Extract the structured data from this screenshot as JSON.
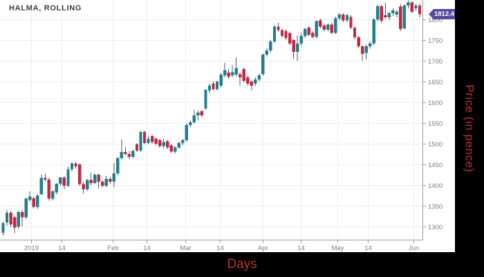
{
  "title": "HALMA, ROLLING",
  "last_price_badge": {
    "value": "1812.4",
    "color": "#584b9e",
    "text_color": "#ffffff"
  },
  "axes": {
    "y_title": "Price (in pence)",
    "x_title": "Days",
    "axis_title_color": "#bb3526"
  },
  "colors": {
    "up": "#1f808d",
    "down": "#c32746",
    "wick": "#555555",
    "grid": "#ececec",
    "axis": "#999999",
    "tick_text": "#7b7b7b",
    "plot_bg": "#ffffff",
    "frame_bg": "#000000",
    "title_text": "#3d3d3d"
  },
  "chart_data": {
    "type": "candlestick",
    "title": "HALMA, ROLLING",
    "xlabel": "Days",
    "ylabel": "Price (in pence)",
    "ylim": [
      1268,
      1847
    ],
    "grid": true,
    "y_ticks": [
      1300,
      1350,
      1400,
      1450,
      1500,
      1550,
      1600,
      1650,
      1700,
      1750,
      1800
    ],
    "x_ticks": [
      {
        "label": "2019",
        "i": 7.4
      },
      {
        "label": "14",
        "i": 15.2
      },
      {
        "label": "Feb",
        "i": 28.7
      },
      {
        "label": "14",
        "i": 37.6
      },
      {
        "label": "Mar",
        "i": 47.7
      },
      {
        "label": "14",
        "i": 56.8
      },
      {
        "label": "Apr",
        "i": 68.0
      },
      {
        "label": "14",
        "i": 77.9
      },
      {
        "label": "May",
        "i": 87.5
      },
      {
        "label": "14",
        "i": 95.4
      },
      {
        "label": "Jun",
        "i": 107.4
      }
    ],
    "last_price": 1812.4,
    "candles": [
      [
        1285,
        1312,
        1278,
        1308
      ],
      [
        1310,
        1340,
        1302,
        1333
      ],
      [
        1333,
        1338,
        1298,
        1305
      ],
      [
        1322,
        1326,
        1284,
        1297
      ],
      [
        1300,
        1338,
        1294,
        1335
      ],
      [
        1335,
        1340,
        1300,
        1322
      ],
      [
        1322,
        1370,
        1318,
        1367
      ],
      [
        1364,
        1385,
        1360,
        1372
      ],
      [
        1368,
        1372,
        1344,
        1347
      ],
      [
        1347,
        1377,
        1342,
        1375
      ],
      [
        1378,
        1425,
        1375,
        1417
      ],
      [
        1417,
        1427,
        1408,
        1413
      ],
      [
        1413,
        1418,
        1362,
        1367
      ],
      [
        1367,
        1388,
        1363,
        1385
      ],
      [
        1382,
        1405,
        1377,
        1403
      ],
      [
        1403,
        1420,
        1398,
        1418
      ],
      [
        1418,
        1422,
        1390,
        1398
      ],
      [
        1398,
        1445,
        1395,
        1438
      ],
      [
        1438,
        1455,
        1432,
        1452
      ],
      [
        1452,
        1456,
        1440,
        1445
      ],
      [
        1450,
        1452,
        1398,
        1402
      ],
      [
        1402,
        1408,
        1380,
        1390
      ],
      [
        1390,
        1415,
        1386,
        1412
      ],
      [
        1412,
        1430,
        1400,
        1405
      ],
      [
        1405,
        1428,
        1402,
        1425
      ],
      [
        1425,
        1428,
        1392,
        1408
      ],
      [
        1408,
        1412,
        1394,
        1398
      ],
      [
        1398,
        1422,
        1395,
        1415
      ],
      [
        1415,
        1420,
        1402,
        1408
      ],
      [
        1408,
        1452,
        1395,
        1428
      ],
      [
        1428,
        1468,
        1424,
        1465
      ],
      [
        1465,
        1510,
        1462,
        1480
      ],
      [
        1480,
        1492,
        1472,
        1475
      ],
      [
        1475,
        1482,
        1462,
        1468
      ],
      [
        1468,
        1486,
        1465,
        1482
      ],
      [
        1498,
        1502,
        1480,
        1483
      ],
      [
        1483,
        1530,
        1480,
        1528
      ],
      [
        1528,
        1532,
        1498,
        1502
      ],
      [
        1502,
        1518,
        1498,
        1512
      ],
      [
        1518,
        1522,
        1500,
        1504
      ],
      [
        1512,
        1516,
        1496,
        1500
      ],
      [
        1508,
        1512,
        1490,
        1494
      ],
      [
        1494,
        1512,
        1488,
        1504
      ],
      [
        1506,
        1510,
        1487,
        1491
      ],
      [
        1496,
        1500,
        1477,
        1481
      ],
      [
        1481,
        1495,
        1476,
        1491
      ],
      [
        1491,
        1505,
        1488,
        1502
      ],
      [
        1502,
        1512,
        1497,
        1508
      ],
      [
        1508,
        1548,
        1505,
        1545
      ],
      [
        1545,
        1556,
        1540,
        1552
      ],
      [
        1552,
        1582,
        1548,
        1568
      ],
      [
        1568,
        1580,
        1556,
        1575
      ],
      [
        1578,
        1582,
        1564,
        1568
      ],
      [
        1585,
        1632,
        1582,
        1630
      ],
      [
        1628,
        1645,
        1622,
        1640
      ],
      [
        1645,
        1650,
        1628,
        1632
      ],
      [
        1632,
        1652,
        1628,
        1650
      ],
      [
        1640,
        1670,
        1636,
        1667
      ],
      [
        1665,
        1695,
        1660,
        1678
      ],
      [
        1672,
        1680,
        1656,
        1662
      ],
      [
        1665,
        1690,
        1660,
        1673
      ],
      [
        1667,
        1708,
        1663,
        1683
      ],
      [
        1668,
        1672,
        1640,
        1660
      ],
      [
        1680,
        1684,
        1648,
        1652
      ],
      [
        1660,
        1664,
        1640,
        1645
      ],
      [
        1650,
        1653,
        1628,
        1640
      ],
      [
        1645,
        1660,
        1640,
        1655
      ],
      [
        1655,
        1670,
        1650,
        1665
      ],
      [
        1668,
        1718,
        1664,
        1715
      ],
      [
        1715,
        1730,
        1710,
        1725
      ],
      [
        1725,
        1750,
        1720,
        1747
      ],
      [
        1747,
        1786,
        1743,
        1783
      ],
      [
        1783,
        1792,
        1770,
        1774
      ],
      [
        1774,
        1778,
        1756,
        1760
      ],
      [
        1772,
        1776,
        1750,
        1755
      ],
      [
        1767,
        1771,
        1738,
        1742
      ],
      [
        1750,
        1753,
        1705,
        1722
      ],
      [
        1722,
        1762,
        1700,
        1742
      ],
      [
        1742,
        1768,
        1736,
        1760
      ],
      [
        1760,
        1780,
        1755,
        1777
      ],
      [
        1780,
        1784,
        1760,
        1763
      ],
      [
        1768,
        1772,
        1754,
        1758
      ],
      [
        1758,
        1798,
        1754,
        1796
      ],
      [
        1798,
        1802,
        1779,
        1783
      ],
      [
        1785,
        1790,
        1771,
        1775
      ],
      [
        1775,
        1790,
        1771,
        1788
      ],
      [
        1788,
        1792,
        1764,
        1768
      ],
      [
        1768,
        1806,
        1764,
        1803
      ],
      [
        1803,
        1816,
        1798,
        1812
      ],
      [
        1812,
        1815,
        1794,
        1798
      ],
      [
        1798,
        1814,
        1794,
        1810
      ],
      [
        1806,
        1810,
        1776,
        1780
      ],
      [
        1780,
        1783,
        1752,
        1757
      ],
      [
        1757,
        1760,
        1730,
        1735
      ],
      [
        1735,
        1737,
        1700,
        1717
      ],
      [
        1719,
        1739,
        1703,
        1735
      ],
      [
        1735,
        1747,
        1729,
        1742
      ],
      [
        1742,
        1803,
        1738,
        1800
      ],
      [
        1800,
        1836,
        1795,
        1832
      ],
      [
        1832,
        1835,
        1792,
        1797
      ],
      [
        1810,
        1840,
        1801,
        1805
      ],
      [
        1805,
        1819,
        1799,
        1815
      ],
      [
        1815,
        1827,
        1809,
        1822
      ],
      [
        1812,
        1823,
        1805,
        1819
      ],
      [
        1831,
        1837,
        1772,
        1777
      ],
      [
        1779,
        1837,
        1775,
        1834
      ],
      [
        1834,
        1845,
        1827,
        1841
      ],
      [
        1841,
        1844,
        1815,
        1819
      ],
      [
        1827,
        1837,
        1821,
        1834
      ],
      [
        1834,
        1839,
        1805,
        1812.4
      ]
    ]
  }
}
